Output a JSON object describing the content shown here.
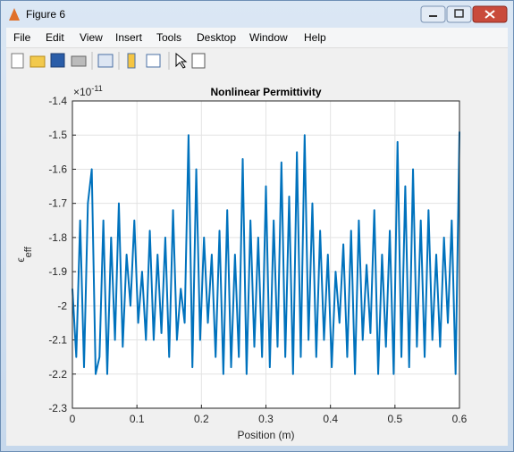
{
  "window": {
    "title": "Figure 6",
    "menu": [
      "File",
      "Edit",
      "View",
      "Insert",
      "Tools",
      "Desktop",
      "Window",
      "Help"
    ]
  },
  "chart_data": {
    "type": "line",
    "title": "Nonlinear Permittivity",
    "xlabel": "Position (m)",
    "ylabel": "ϵ",
    "ylabel_sub": "eff",
    "y_multiplier": "×10",
    "y_multiplier_exp": "-11",
    "color": "#0072bd",
    "grid": true,
    "xlim": [
      0,
      0.6
    ],
    "xticks": [
      0,
      0.1,
      0.2,
      0.3,
      0.4,
      0.5,
      0.6
    ],
    "ylim": [
      -2.3,
      -1.4
    ],
    "yticks": [
      -2.3,
      -2.2,
      -2.1,
      -2,
      -1.9,
      -1.8,
      -1.7,
      -1.6,
      -1.5,
      -1.4
    ],
    "x": [
      0,
      0.006,
      0.012,
      0.018,
      0.024,
      0.03,
      0.036,
      0.042,
      0.048,
      0.054,
      0.06,
      0.066,
      0.072,
      0.078,
      0.084,
      0.09,
      0.096,
      0.102,
      0.108,
      0.114,
      0.12,
      0.126,
      0.132,
      0.138,
      0.144,
      0.15,
      0.156,
      0.162,
      0.168,
      0.174,
      0.18,
      0.186,
      0.192,
      0.198,
      0.204,
      0.21,
      0.216,
      0.222,
      0.228,
      0.234,
      0.24,
      0.246,
      0.252,
      0.258,
      0.264,
      0.27,
      0.276,
      0.282,
      0.288,
      0.294,
      0.3,
      0.306,
      0.312,
      0.318,
      0.324,
      0.33,
      0.336,
      0.342,
      0.348,
      0.354,
      0.36,
      0.366,
      0.372,
      0.378,
      0.384,
      0.39,
      0.396,
      0.402,
      0.408,
      0.414,
      0.42,
      0.426,
      0.432,
      0.438,
      0.444,
      0.45,
      0.456,
      0.462,
      0.468,
      0.474,
      0.48,
      0.486,
      0.492,
      0.498,
      0.504,
      0.51,
      0.516,
      0.522,
      0.528,
      0.534,
      0.54,
      0.546,
      0.552,
      0.558,
      0.564,
      0.57,
      0.576,
      0.582,
      0.588,
      0.594,
      0.6
    ],
    "values": [
      -1.95,
      -2.15,
      -1.75,
      -2.18,
      -1.7,
      -1.6,
      -2.2,
      -2.15,
      -1.75,
      -2.2,
      -1.8,
      -2.1,
      -1.7,
      -2.12,
      -1.85,
      -2.0,
      -1.75,
      -2.05,
      -1.9,
      -2.1,
      -1.78,
      -2.1,
      -1.85,
      -2.08,
      -1.8,
      -2.15,
      -1.72,
      -2.1,
      -1.95,
      -2.05,
      -1.5,
      -2.18,
      -1.6,
      -2.1,
      -1.8,
      -2.05,
      -1.85,
      -2.15,
      -1.78,
      -2.2,
      -1.72,
      -2.18,
      -1.85,
      -2.15,
      -1.57,
      -2.2,
      -1.75,
      -2.12,
      -1.8,
      -2.15,
      -1.65,
      -2.18,
      -1.75,
      -2.12,
      -1.58,
      -2.15,
      -1.68,
      -2.2,
      -1.55,
      -2.15,
      -1.5,
      -2.1,
      -1.7,
      -2.15,
      -1.78,
      -2.1,
      -1.85,
      -2.18,
      -1.9,
      -2.05,
      -1.82,
      -2.15,
      -1.78,
      -2.2,
      -1.75,
      -2.1,
      -1.88,
      -2.08,
      -1.72,
      -2.2,
      -1.85,
      -2.12,
      -1.78,
      -2.2,
      -1.52,
      -2.15,
      -1.65,
      -2.18,
      -1.6,
      -2.12,
      -1.75,
      -2.15,
      -1.72,
      -2.1,
      -1.85,
      -2.12,
      -1.8,
      -2.05,
      -1.75,
      -2.2,
      -1.49
    ]
  }
}
